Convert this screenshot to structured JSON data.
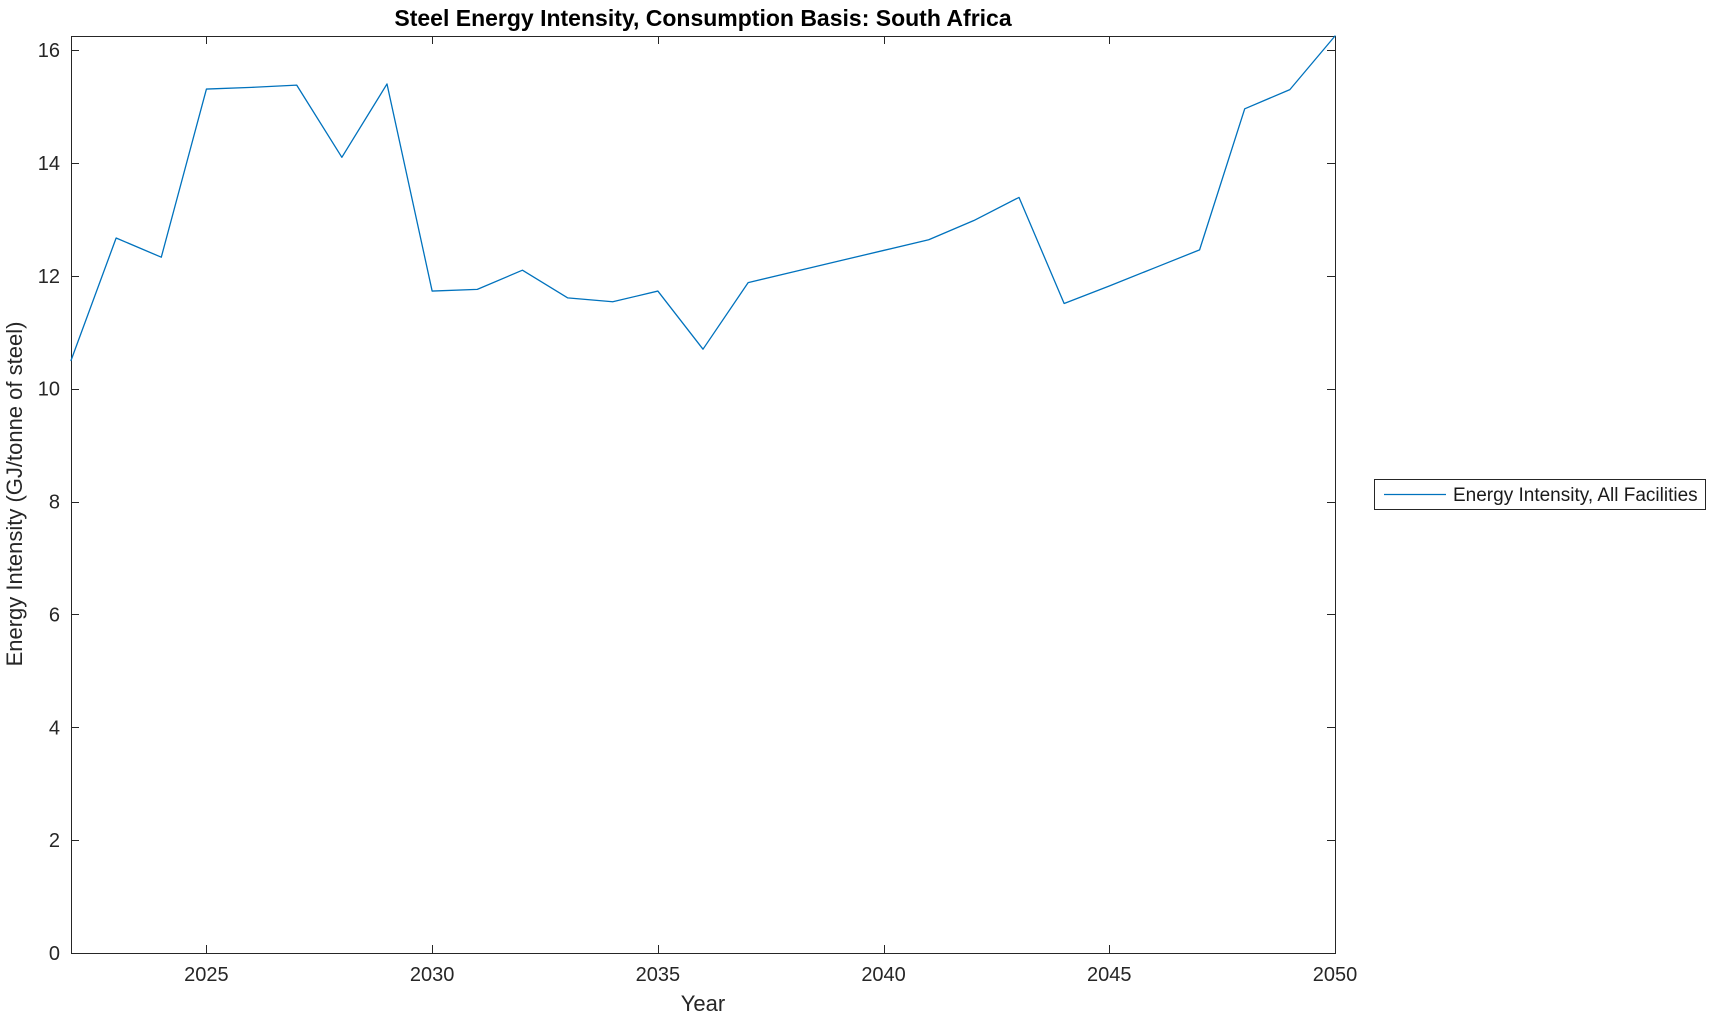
{
  "figure": {
    "background_color": "#ffffff"
  },
  "chart_data": {
    "type": "line",
    "title": "Steel Energy Intensity, Consumption Basis: South Africa",
    "xlabel": "Year",
    "ylabel": "Energy Intensity (GJ/tonne of steel)",
    "xlim": [
      2022,
      2050
    ],
    "ylim": [
      0,
      16.25
    ],
    "x_ticks": [
      2025,
      2030,
      2035,
      2040,
      2045,
      2050
    ],
    "y_ticks": [
      0,
      2,
      4,
      6,
      8,
      10,
      12,
      14,
      16
    ],
    "grid": false,
    "box": true,
    "tick_direction": "in",
    "x": [
      2022,
      2023,
      2024,
      2025,
      2026,
      2027,
      2028,
      2029,
      2030,
      2031,
      2032,
      2033,
      2034,
      2035,
      2036,
      2037,
      2038,
      2039,
      2040,
      2041,
      2042,
      2043,
      2044,
      2045,
      2046,
      2047,
      2048,
      2049,
      2050
    ],
    "series": [
      {
        "name": "Energy Intensity, All Facilities",
        "values": [
          10.5,
          12.67,
          12.33,
          15.31,
          15.34,
          15.38,
          14.1,
          15.4,
          11.73,
          11.76,
          12.1,
          11.61,
          11.54,
          11.73,
          10.7,
          11.88,
          12.07,
          12.26,
          12.45,
          12.64,
          12.98,
          13.39,
          11.51,
          11.82,
          12.14,
          12.46,
          14.96,
          15.3,
          16.25
        ],
        "color": "#0072BD"
      }
    ],
    "legend": {
      "position": "outside-right",
      "entries": [
        "Energy Intensity, All Facilities"
      ]
    },
    "axis_color": "#262626",
    "line_color": "#0072BD"
  }
}
